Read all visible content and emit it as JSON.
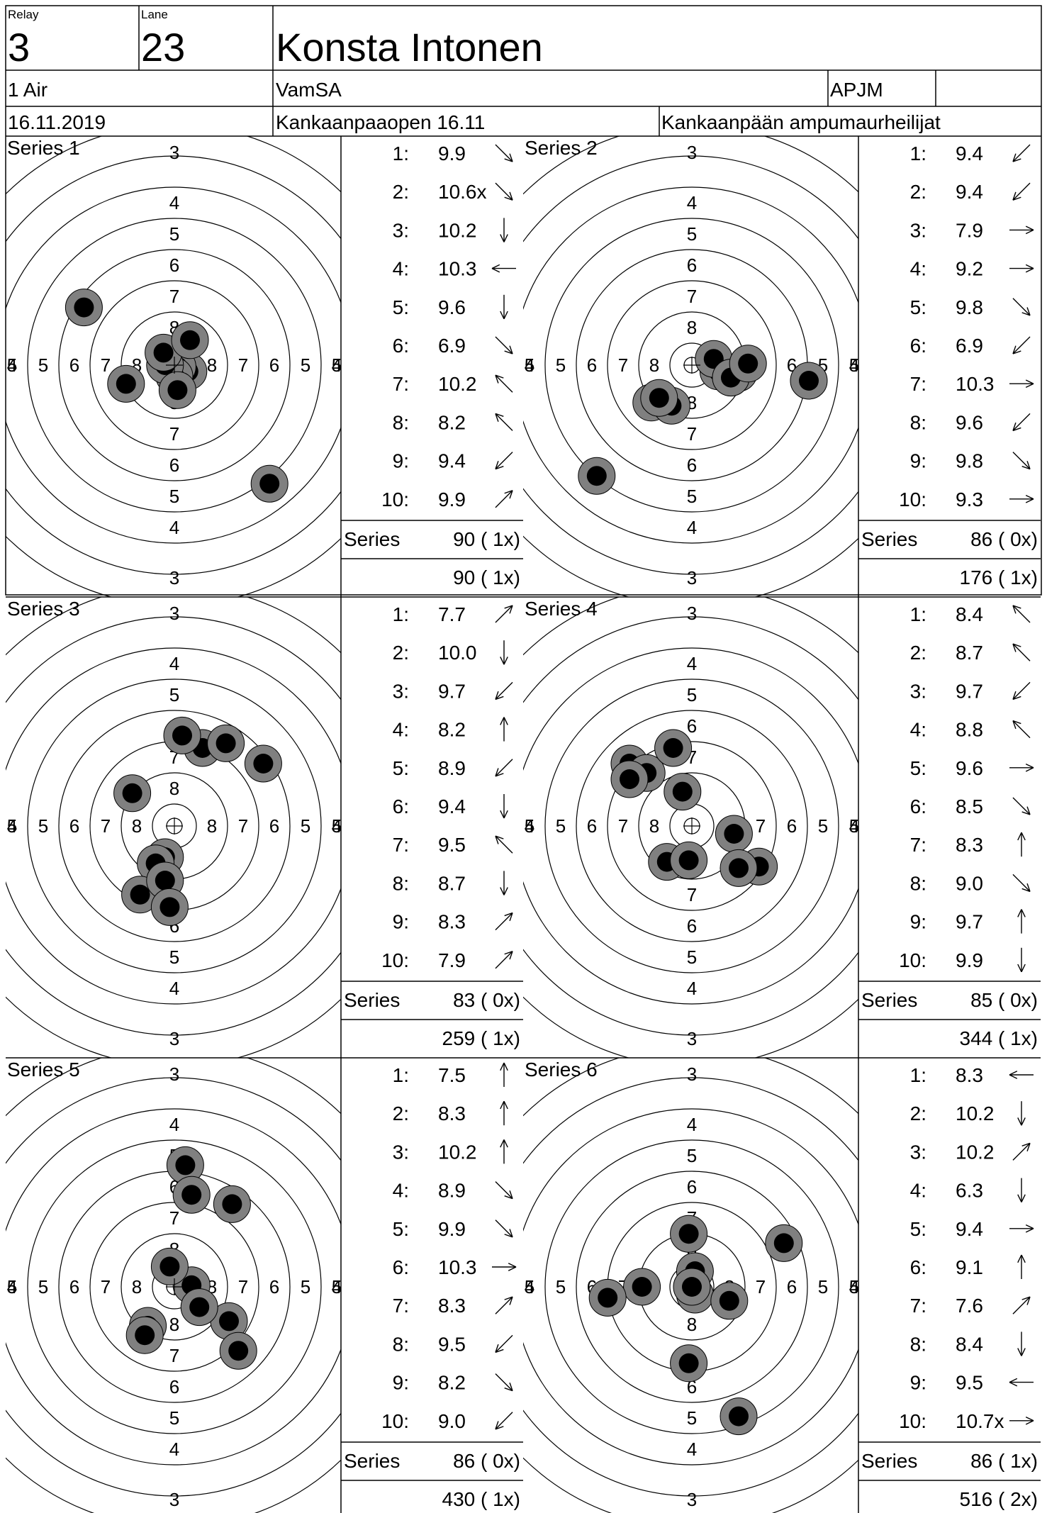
{
  "header": {
    "relay_label": "Relay",
    "relay_value": "3",
    "lane_label": "Lane",
    "lane_value": "23",
    "shooter_name": "Konsta Intonen",
    "event": "1 Air",
    "club": "VamSA",
    "category": "APJM",
    "category_extra": "",
    "date": "16.11.2019",
    "competition": "Kankaanpaaopen 16.11",
    "organizer": "Kankaanpään ampumaurheilijat"
  },
  "series_total_label": "Series",
  "series": [
    {
      "title": "Series 1",
      "shots": [
        {
          "num": "1:",
          "score": "9.9",
          "dir": "se",
          "x": 0.45,
          "y": 0.2
        },
        {
          "num": "2:",
          "score": "10.6x",
          "dir": "se",
          "x": 0.1,
          "y": 0.05
        },
        {
          "num": "3:",
          "score": "10.2",
          "dir": "s",
          "x": 0.0,
          "y": 0.35
        },
        {
          "num": "4:",
          "score": "10.3",
          "dir": "w",
          "x": -0.3,
          "y": 0.0
        },
        {
          "num": "5:",
          "score": "9.6",
          "dir": "s",
          "x": 0.1,
          "y": 0.8
        },
        {
          "num": "6:",
          "score": "6.9",
          "dir": "se",
          "x": 3.05,
          "y": 3.8
        },
        {
          "num": "7:",
          "score": "10.2",
          "dir": "nw",
          "x": -0.35,
          "y": -0.4
        },
        {
          "num": "8:",
          "score": "8.2",
          "dir": "nw",
          "x": -2.9,
          "y": -1.85
        },
        {
          "num": "9:",
          "score": "9.4",
          "dir": "sw",
          "x": -1.55,
          "y": 0.6
        },
        {
          "num": "10:",
          "score": "9.9",
          "dir": "ne",
          "x": 0.5,
          "y": -0.8
        }
      ],
      "series_score": "90 ( 1x)",
      "running_total": "90 ( 1x)"
    },
    {
      "title": "Series 2",
      "shots": [
        {
          "num": "1:",
          "score": "9.4",
          "dir": "sw",
          "x": -1.3,
          "y": 1.2
        },
        {
          "num": "2:",
          "score": "9.4",
          "dir": "sw",
          "x": -0.65,
          "y": 1.3
        },
        {
          "num": "3:",
          "score": "7.9",
          "dir": "e",
          "x": 3.75,
          "y": 0.5
        },
        {
          "num": "4:",
          "score": "9.2",
          "dir": "e",
          "x": 1.5,
          "y": 0.25
        },
        {
          "num": "5:",
          "score": "9.8",
          "dir": "se",
          "x": 0.85,
          "y": 0.2
        },
        {
          "num": "6:",
          "score": "6.9",
          "dir": "sw",
          "x": -3.05,
          "y": 3.55
        },
        {
          "num": "7:",
          "score": "10.3",
          "dir": "e",
          "x": 0.7,
          "y": -0.2
        },
        {
          "num": "8:",
          "score": "9.6",
          "dir": "sw",
          "x": -1.05,
          "y": 1.05
        },
        {
          "num": "9:",
          "score": "9.8",
          "dir": "se",
          "x": 1.25,
          "y": 0.4
        },
        {
          "num": "10:",
          "score": "9.3",
          "dir": "e",
          "x": 1.8,
          "y": -0.05
        }
      ],
      "series_score": "86 ( 0x)",
      "running_total": "176 ( 1x)"
    },
    {
      "title": "Series 3",
      "shots": [
        {
          "num": "1:",
          "score": "7.7",
          "dir": "ne",
          "x": 2.85,
          "y": -2.0
        },
        {
          "num": "2:",
          "score": "10.0",
          "dir": "s",
          "x": -0.3,
          "y": 1.0
        },
        {
          "num": "3:",
          "score": "9.7",
          "dir": "sw",
          "x": -0.6,
          "y": 1.2
        },
        {
          "num": "4:",
          "score": "8.2",
          "dir": "n",
          "x": 0.9,
          "y": -2.5
        },
        {
          "num": "5:",
          "score": "8.9",
          "dir": "sw",
          "x": -1.1,
          "y": 2.2
        },
        {
          "num": "6:",
          "score": "9.4",
          "dir": "s",
          "x": -0.3,
          "y": 1.75
        },
        {
          "num": "7:",
          "score": "9.5",
          "dir": "nw",
          "x": -1.35,
          "y": -1.05
        },
        {
          "num": "8:",
          "score": "8.7",
          "dir": "s",
          "x": -0.15,
          "y": 2.6
        },
        {
          "num": "9:",
          "score": "8.3",
          "dir": "ne",
          "x": 0.25,
          "y": -2.9
        },
        {
          "num": "10:",
          "score": "7.9",
          "dir": "ne",
          "x": 1.65,
          "y": -2.65
        }
      ],
      "series_score": "83 ( 0x)",
      "running_total": "259 ( 1x)"
    },
    {
      "title": "Series 4",
      "shots": [
        {
          "num": "1:",
          "score": "8.4",
          "dir": "nw",
          "x": -2.0,
          "y": -2.0
        },
        {
          "num": "2:",
          "score": "8.7",
          "dir": "nw",
          "x": -1.45,
          "y": -1.7
        },
        {
          "num": "3:",
          "score": "9.7",
          "dir": "sw",
          "x": -0.8,
          "y": 1.15
        },
        {
          "num": "4:",
          "score": "8.8",
          "dir": "nw",
          "x": -2.0,
          "y": -1.5
        },
        {
          "num": "5:",
          "score": "9.6",
          "dir": "e",
          "x": 1.35,
          "y": 0.25
        },
        {
          "num": "6:",
          "score": "8.5",
          "dir": "se",
          "x": 2.15,
          "y": 1.3
        },
        {
          "num": "7:",
          "score": "8.3",
          "dir": "n",
          "x": -0.6,
          "y": -2.5
        },
        {
          "num": "8:",
          "score": "9.0",
          "dir": "se",
          "x": 1.5,
          "y": 1.35
        },
        {
          "num": "9:",
          "score": "9.7",
          "dir": "n",
          "x": -0.3,
          "y": -1.1
        },
        {
          "num": "10:",
          "score": "9.9",
          "dir": "s",
          "x": -0.1,
          "y": 1.1
        }
      ],
      "series_score": "85 ( 0x)",
      "running_total": "344 ( 1x)"
    },
    {
      "title": "Series 5",
      "shots": [
        {
          "num": "1:",
          "score": "7.5",
          "dir": "n",
          "x": 0.35,
          "y": -3.9
        },
        {
          "num": "2:",
          "score": "8.3",
          "dir": "n",
          "x": 0.55,
          "y": -2.95
        },
        {
          "num": "3:",
          "score": "10.2",
          "dir": "n",
          "x": 0.55,
          "y": -0.05
        },
        {
          "num": "4:",
          "score": "8.9",
          "dir": "se",
          "x": 1.75,
          "y": 1.1
        },
        {
          "num": "5:",
          "score": "9.9",
          "dir": "se",
          "x": 0.8,
          "y": 0.65
        },
        {
          "num": "6:",
          "score": "10.3",
          "dir": "e",
          "x": -0.15,
          "y": -0.65
        },
        {
          "num": "7:",
          "score": "8.3",
          "dir": "ne",
          "x": 1.85,
          "y": -2.65
        },
        {
          "num": "8:",
          "score": "9.5",
          "dir": "sw",
          "x": -0.85,
          "y": 1.25
        },
        {
          "num": "9:",
          "score": "8.2",
          "dir": "se",
          "x": 2.05,
          "y": 2.05
        },
        {
          "num": "10:",
          "score": "9.0",
          "dir": "sw",
          "x": -0.95,
          "y": 1.55
        }
      ],
      "series_score": "86 ( 0x)",
      "running_total": "430 ( 1x)"
    },
    {
      "title": "Series 6",
      "shots": [
        {
          "num": "1:",
          "score": "8.3",
          "dir": "w",
          "x": -1.6,
          "y": 0.0
        },
        {
          "num": "2:",
          "score": "10.2",
          "dir": "s",
          "x": 0.1,
          "y": 0.25
        },
        {
          "num": "3:",
          "score": "10.2",
          "dir": "ne",
          "x": 0.1,
          "y": -0.5
        },
        {
          "num": "4:",
          "score": "6.3",
          "dir": "s",
          "x": 1.5,
          "y": 4.15
        },
        {
          "num": "5:",
          "score": "9.4",
          "dir": "e",
          "x": 1.2,
          "y": 0.45
        },
        {
          "num": "6:",
          "score": "9.1",
          "dir": "n",
          "x": -0.1,
          "y": -1.7
        },
        {
          "num": "7:",
          "score": "7.6",
          "dir": "ne",
          "x": 2.95,
          "y": -1.4
        },
        {
          "num": "8:",
          "score": "8.4",
          "dir": "s",
          "x": -0.1,
          "y": 2.45
        },
        {
          "num": "9:",
          "score": "9.5",
          "dir": "w",
          "x": -2.7,
          "y": 0.35
        },
        {
          "num": "10:",
          "score": "10.7x",
          "dir": "e",
          "x": 0.0,
          "y": 0.0
        }
      ],
      "series_score": "86 ( 1x)",
      "running_total": "516 ( 2x)"
    }
  ]
}
